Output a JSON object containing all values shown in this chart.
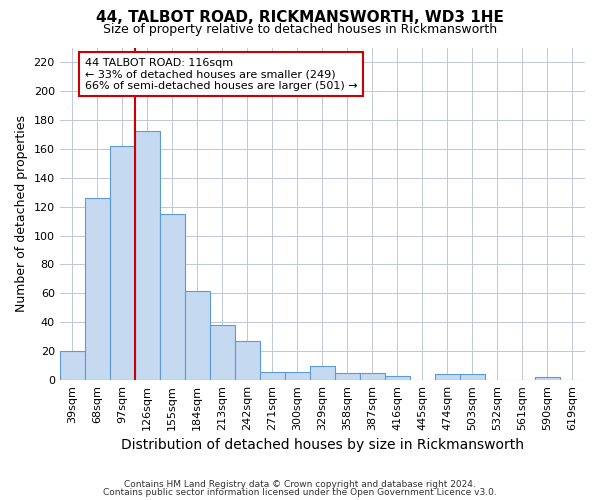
{
  "title": "44, TALBOT ROAD, RICKMANSWORTH, WD3 1HE",
  "subtitle": "Size of property relative to detached houses in Rickmansworth",
  "xlabel": "Distribution of detached houses by size in Rickmansworth",
  "ylabel": "Number of detached properties",
  "categories": [
    "39sqm",
    "68sqm",
    "97sqm",
    "126sqm",
    "155sqm",
    "184sqm",
    "213sqm",
    "242sqm",
    "271sqm",
    "300sqm",
    "329sqm",
    "358sqm",
    "387sqm",
    "416sqm",
    "445sqm",
    "474sqm",
    "503sqm",
    "532sqm",
    "561sqm",
    "590sqm",
    "619sqm"
  ],
  "values": [
    20,
    126,
    162,
    172,
    115,
    62,
    38,
    27,
    6,
    6,
    10,
    5,
    5,
    3,
    0,
    4,
    4,
    0,
    0,
    2,
    0
  ],
  "bar_color": "#c5d9f1",
  "bar_edge_color": "#5b9bd5",
  "vline_color": "#cc0000",
  "vline_index": 3,
  "annotation_text": "44 TALBOT ROAD: 116sqm\n← 33% of detached houses are smaller (249)\n66% of semi-detached houses are larger (501) →",
  "annotation_box_color": "#ffffff",
  "annotation_box_edge": "#cc0000",
  "ylim": [
    0,
    230
  ],
  "yticks": [
    0,
    20,
    40,
    60,
    80,
    100,
    120,
    140,
    160,
    180,
    200,
    220
  ],
  "footer1": "Contains HM Land Registry data © Crown copyright and database right 2024.",
  "footer2": "Contains public sector information licensed under the Open Government Licence v3.0.",
  "bg_color": "#ffffff",
  "grid_color": "#c0c8d8",
  "title_fontsize": 11,
  "subtitle_fontsize": 9,
  "ylabel_fontsize": 9,
  "xlabel_fontsize": 10,
  "tick_fontsize": 8,
  "annot_fontsize": 8,
  "footer_fontsize": 6.5
}
